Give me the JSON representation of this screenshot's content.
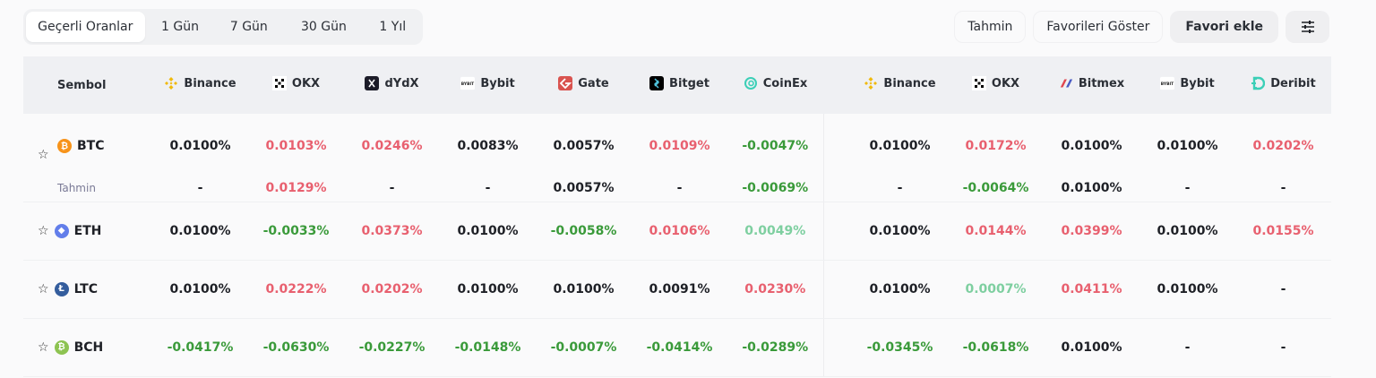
{
  "tabs": [
    {
      "label": "Geçerli Oranlar",
      "active": true
    },
    {
      "label": "1 Gün"
    },
    {
      "label": "7 Gün"
    },
    {
      "label": "30 Gün"
    },
    {
      "label": "1 Yıl"
    }
  ],
  "actions": {
    "tahmin": "Tahmin",
    "show_favorites": "Favorileri Göster",
    "add_favorite": "Favori ekle",
    "settings_icon": "sliders-icon"
  },
  "table": {
    "symbol_header": "Sembol",
    "columns": [
      {
        "name": "Binance",
        "logo": "binance",
        "color": "#f0b90b"
      },
      {
        "name": "OKX",
        "logo": "okx",
        "color": "#000000"
      },
      {
        "name": "dYdX",
        "logo": "dydx",
        "color": "#1c1c28"
      },
      {
        "name": "Bybit",
        "logo": "bybit",
        "color": "#ffffff"
      },
      {
        "name": "Gate",
        "logo": "gate",
        "color": "#d9534f"
      },
      {
        "name": "Bitget",
        "logo": "bitget",
        "color": "#000000"
      },
      {
        "name": "CoinEx",
        "logo": "coinex",
        "color": "#3ccfb7"
      },
      {
        "name": "Binance",
        "logo": "binance",
        "color": "#f0b90b"
      },
      {
        "name": "OKX",
        "logo": "okx",
        "color": "#000000"
      },
      {
        "name": "Bitmex",
        "logo": "bitmex",
        "color": "#e0464f"
      },
      {
        "name": "Bybit",
        "logo": "bybit",
        "color": "#ffffff"
      },
      {
        "name": "Deribit",
        "logo": "deribit",
        "color": "#3ccfb7"
      }
    ],
    "forecast_label": "Tahmin",
    "rows": [
      {
        "symbol": "BTC",
        "coin_color": "#f7931a",
        "coin_glyph": "₿",
        "values": [
          [
            "0.0100%",
            "neu"
          ],
          [
            "0.0103%",
            "up"
          ],
          [
            "0.0246%",
            "up"
          ],
          [
            "0.0083%",
            "neu"
          ],
          [
            "0.0057%",
            "neu"
          ],
          [
            "0.0109%",
            "up"
          ],
          [
            "-0.0047%",
            "down"
          ],
          [
            "0.0100%",
            "neu"
          ],
          [
            "0.0172%",
            "up"
          ],
          [
            "0.0100%",
            "neu"
          ],
          [
            "0.0100%",
            "neu"
          ],
          [
            "0.0202%",
            "up"
          ]
        ],
        "forecast": [
          [
            "-",
            "neu"
          ],
          [
            "0.0129%",
            "up"
          ],
          [
            "-",
            "neu"
          ],
          [
            "-",
            "neu"
          ],
          [
            "0.0057%",
            "neu"
          ],
          [
            "-",
            "neu"
          ],
          [
            "-0.0069%",
            "down"
          ],
          [
            "-",
            "neu"
          ],
          [
            "-0.0064%",
            "down"
          ],
          [
            "0.0100%",
            "neu"
          ],
          [
            "-",
            "neu"
          ],
          [
            "-",
            "neu"
          ]
        ]
      },
      {
        "symbol": "ETH",
        "coin_color": "#627eea",
        "coin_glyph": "◆",
        "values": [
          [
            "0.0100%",
            "neu"
          ],
          [
            "-0.0033%",
            "down"
          ],
          [
            "0.0373%",
            "up"
          ],
          [
            "0.0100%",
            "neu"
          ],
          [
            "-0.0058%",
            "down"
          ],
          [
            "0.0106%",
            "up"
          ],
          [
            "0.0049%",
            "light"
          ],
          [
            "0.0100%",
            "neu"
          ],
          [
            "0.0144%",
            "up"
          ],
          [
            "0.0399%",
            "up"
          ],
          [
            "0.0100%",
            "neu"
          ],
          [
            "0.0155%",
            "up"
          ]
        ]
      },
      {
        "symbol": "LTC",
        "coin_color": "#345d9d",
        "coin_glyph": "Ł",
        "values": [
          [
            "0.0100%",
            "neu"
          ],
          [
            "0.0222%",
            "up"
          ],
          [
            "0.0202%",
            "up"
          ],
          [
            "0.0100%",
            "neu"
          ],
          [
            "0.0100%",
            "neu"
          ],
          [
            "0.0091%",
            "neu"
          ],
          [
            "0.0230%",
            "up"
          ],
          [
            "0.0100%",
            "neu"
          ],
          [
            "0.0007%",
            "light"
          ],
          [
            "0.0411%",
            "up"
          ],
          [
            "0.0100%",
            "neu"
          ],
          [
            "-",
            "neu"
          ]
        ]
      },
      {
        "symbol": "BCH",
        "coin_color": "#8dc351",
        "coin_glyph": "₿",
        "values": [
          [
            "-0.0417%",
            "down"
          ],
          [
            "-0.0630%",
            "down"
          ],
          [
            "-0.0227%",
            "down"
          ],
          [
            "-0.0148%",
            "down"
          ],
          [
            "-0.0007%",
            "down"
          ],
          [
            "-0.0414%",
            "down"
          ],
          [
            "-0.0289%",
            "down"
          ],
          [
            "-0.0345%",
            "down"
          ],
          [
            "-0.0618%",
            "down"
          ],
          [
            "0.0100%",
            "neu"
          ],
          [
            "-",
            "neu"
          ],
          [
            "-",
            "neu"
          ]
        ]
      }
    ]
  }
}
